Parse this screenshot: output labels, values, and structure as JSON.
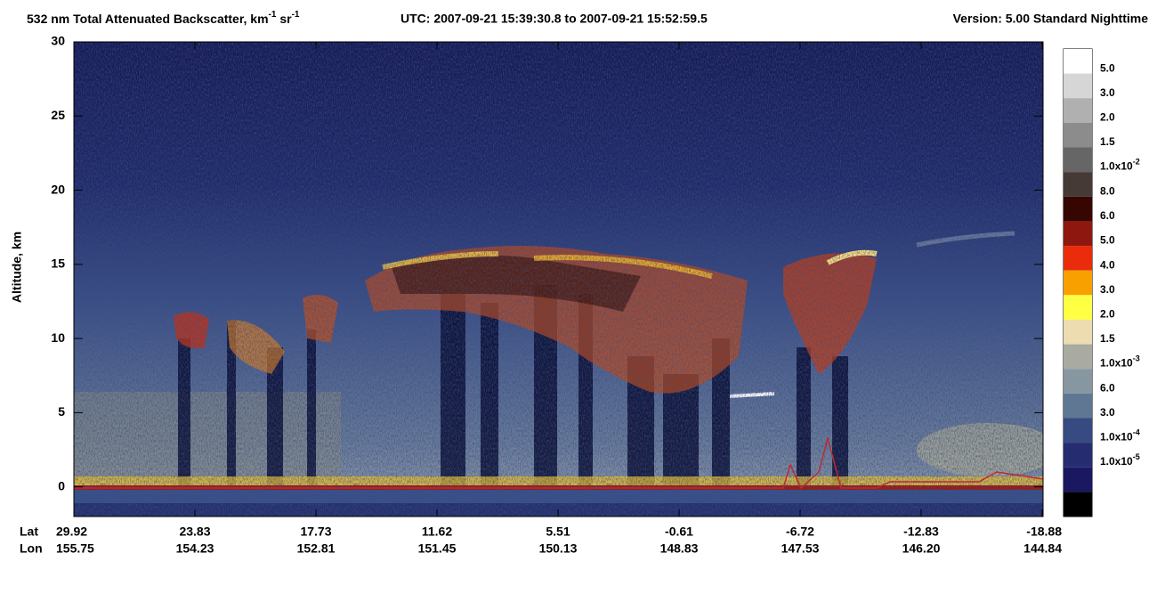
{
  "chart_data": {
    "type": "curtain",
    "title": {
      "text": "532 nm Total Attenuated Backscatter, km",
      "sup1": "-1",
      "mid": " sr",
      "sup2": "-1"
    },
    "utc": "UTC:  2007-09-21 15:39:30.8  to  2007-09-21 15:52:59.5",
    "version": "Version: 5.00  Standard  Nighttime",
    "ylabel": "Altitude, km",
    "ylim": [
      -2,
      30
    ],
    "yticks": [
      0,
      5,
      10,
      15,
      20,
      25,
      30
    ],
    "lat_label": "Lat",
    "lon_label": "Lon",
    "lat_ticks": [
      29.92,
      23.83,
      17.73,
      11.62,
      5.51,
      -0.61,
      -6.72,
      -12.83,
      -18.88
    ],
    "lon_ticks": [
      155.75,
      154.23,
      152.81,
      151.45,
      150.13,
      148.83,
      147.53,
      {
        "value": 146.2,
        "label": "146.20"
      },
      144.84
    ],
    "colorbar_colors": [
      "#ffffff",
      "#d6d6d6",
      "#b0b0b0",
      "#8c8c8c",
      "#666666",
      "#463a36",
      "#360600",
      "#8e1810",
      "#ea2c0c",
      "#f7a000",
      "#ffff44",
      "#ecdcb0",
      "#a9aaa2",
      "#8797a2",
      "#5f7792",
      "#374b82",
      "#252d70",
      "#1a1860",
      "#000000"
    ],
    "colorbar_labels": [
      "5.0",
      "3.0",
      "2.0",
      "1.5",
      {
        "base": "1.0x10",
        "exp": "-2"
      },
      "8.0",
      "6.0",
      "5.0",
      "4.0",
      "3.0",
      "2.0",
      "1.5",
      {
        "base": "1.0x10",
        "exp": "-3"
      },
      "6.0",
      "3.0",
      {
        "base": "1.0x10",
        "exp": "-4"
      },
      {
        "base": "1.0x10",
        "exp": "-5"
      }
    ]
  }
}
